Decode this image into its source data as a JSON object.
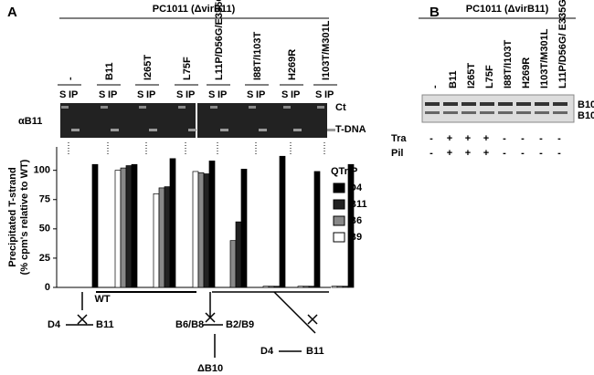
{
  "figure": {
    "panel_a": "A",
    "panel_b": "B",
    "strain": "PC1011 (ΔvirB11)",
    "lane_labels": [
      "S",
      "IP"
    ],
    "row_label": "αB11",
    "bands": [
      "Ct",
      "T-DNA"
    ],
    "scheme": {
      "wt": "WT",
      "left": [
        "D4",
        "B11"
      ],
      "middle": [
        "B6/B8",
        "B2/B9",
        "ΔB10"
      ],
      "right": [
        "D4",
        "B11"
      ]
    }
  },
  "panel_b": {
    "strain": "PC1011 (ΔvirB11)",
    "lanes": [
      "-",
      "B11",
      "I265T",
      "L75F",
      "I88T/I103T",
      "H269R",
      "I103T/M301L",
      "L11P/D56G/ E335G"
    ],
    "bands": [
      "B10",
      "B10*"
    ],
    "rows": [
      {
        "label": "Tra",
        "values": [
          "-",
          "+",
          "+",
          "+",
          "-",
          "-",
          "-",
          "-"
        ]
      },
      {
        "label": "Pil",
        "values": [
          "-",
          "+",
          "+",
          "+",
          "-",
          "-",
          "-",
          "-"
        ]
      }
    ]
  },
  "chart_data": {
    "type": "bar",
    "ylabel": [
      "Precipitated T-strand",
      "(% cpm's relative to WT)"
    ],
    "legend_title": "QTrIP",
    "categories": [
      "-",
      "B11",
      "I265T",
      "L75F",
      "L11P/D56G/E335G",
      "I88T/I103T",
      "H269R",
      "I103T/M301L"
    ],
    "series": [
      {
        "name": "D4",
        "color": "#000000",
        "values": [
          105,
          105,
          110,
          108,
          101,
          112,
          99,
          105
        ]
      },
      {
        "name": "B11",
        "color": "#222222",
        "values": [
          0,
          104,
          86,
          97,
          56,
          1,
          1,
          1
        ]
      },
      {
        "name": "B6",
        "color": "#888888",
        "values": [
          0,
          102,
          85,
          98,
          40,
          1,
          1,
          1
        ]
      },
      {
        "name": "B9",
        "color": "#ffffff",
        "values": [
          0,
          100,
          80,
          99,
          0,
          1,
          1,
          1
        ]
      }
    ],
    "ylim": [
      0,
      120
    ],
    "yticks": [
      0,
      25,
      50,
      75,
      100
    ]
  }
}
